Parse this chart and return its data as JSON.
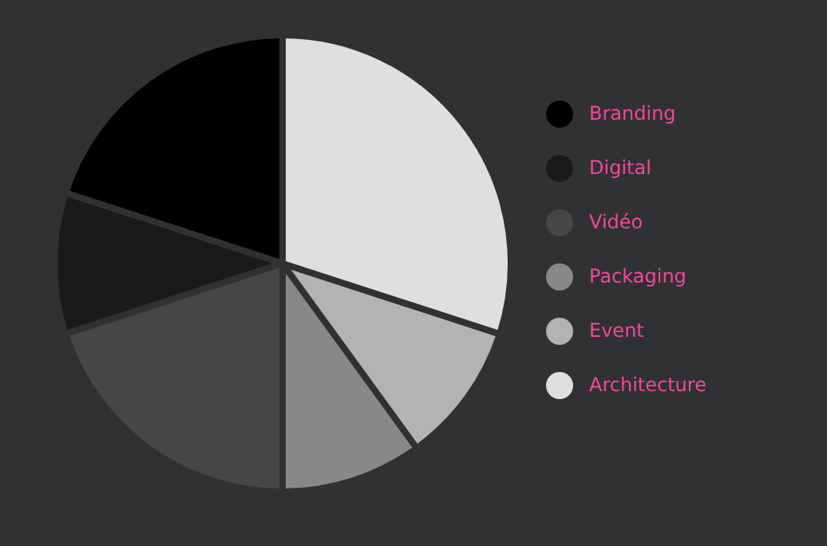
{
  "chart_data": {
    "type": "pie",
    "categories": [
      "Branding",
      "Digital",
      "Vidéo",
      "Packaging",
      "Event",
      "Architecture"
    ],
    "values": [
      20,
      10,
      20,
      10,
      10,
      30
    ],
    "colors": [
      "#000000",
      "#1a1a1a",
      "#464646",
      "#888888",
      "#b3b3b3",
      "#e0dfdd"
    ],
    "legend": "right"
  }
}
